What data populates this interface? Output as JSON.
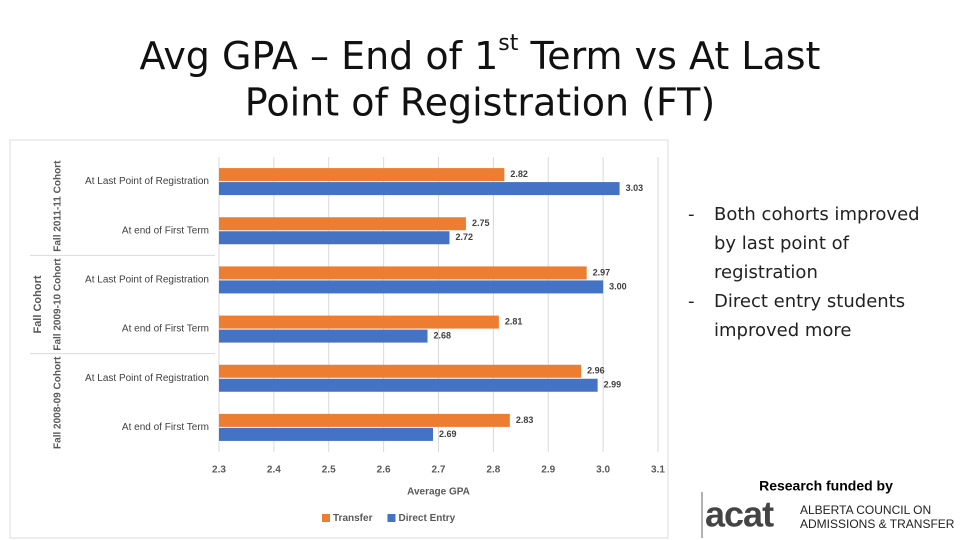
{
  "title": {
    "line1_start": "Avg GPA – End of 1",
    "line1_sup": "st",
    "line1_end": " Term vs At Last",
    "line2": "Point of Registration (FT)"
  },
  "chart_data": {
    "type": "bar",
    "orientation": "horizontal",
    "categories": [
      "At Last Point of Registration",
      "At end of First Term",
      "At Last Point of Registration",
      "At end of First Term",
      "At Last Point of Registration",
      "At end of First Term"
    ],
    "groups": [
      "Fall 2011-11 Cohort",
      "Fall 2009-10 Cohort",
      "Fall 2008-09 Cohort"
    ],
    "group_axis_label": "Fall Cohort",
    "series": [
      {
        "name": "Transfer",
        "color": "#ed7d31",
        "values": [
          2.82,
          2.75,
          2.97,
          2.81,
          2.96,
          2.83
        ],
        "value_labels": [
          "2.82",
          "2.75",
          "2.97",
          "2.81",
          "2.96",
          "2.83"
        ]
      },
      {
        "name": "Direct Entry",
        "color": "#4472c4",
        "values": [
          3.03,
          2.72,
          3.0,
          2.68,
          2.99,
          2.69
        ],
        "value_labels": [
          "3.03",
          "2.72",
          "3.00",
          "2.68",
          "2.99",
          "2.69"
        ]
      }
    ],
    "xlabel": "Average GPA",
    "xlim": [
      2.3,
      3.1
    ],
    "xticks": [
      2.3,
      2.4,
      2.5,
      2.6,
      2.7,
      2.8,
      2.9,
      {
        "value": 3.0,
        "label": "3.0"
      },
      3.1
    ],
    "grid": true,
    "legend": "bottom"
  },
  "bullets": [
    "Both cohorts improved by last point of registration",
    "Direct entry students improved more"
  ],
  "funding": {
    "text": "Research funded by",
    "logo": "acat",
    "org_line1": "ALBERTA COUNCIL ON",
    "org_line2": "ADMISSIONS & TRANSFER"
  }
}
